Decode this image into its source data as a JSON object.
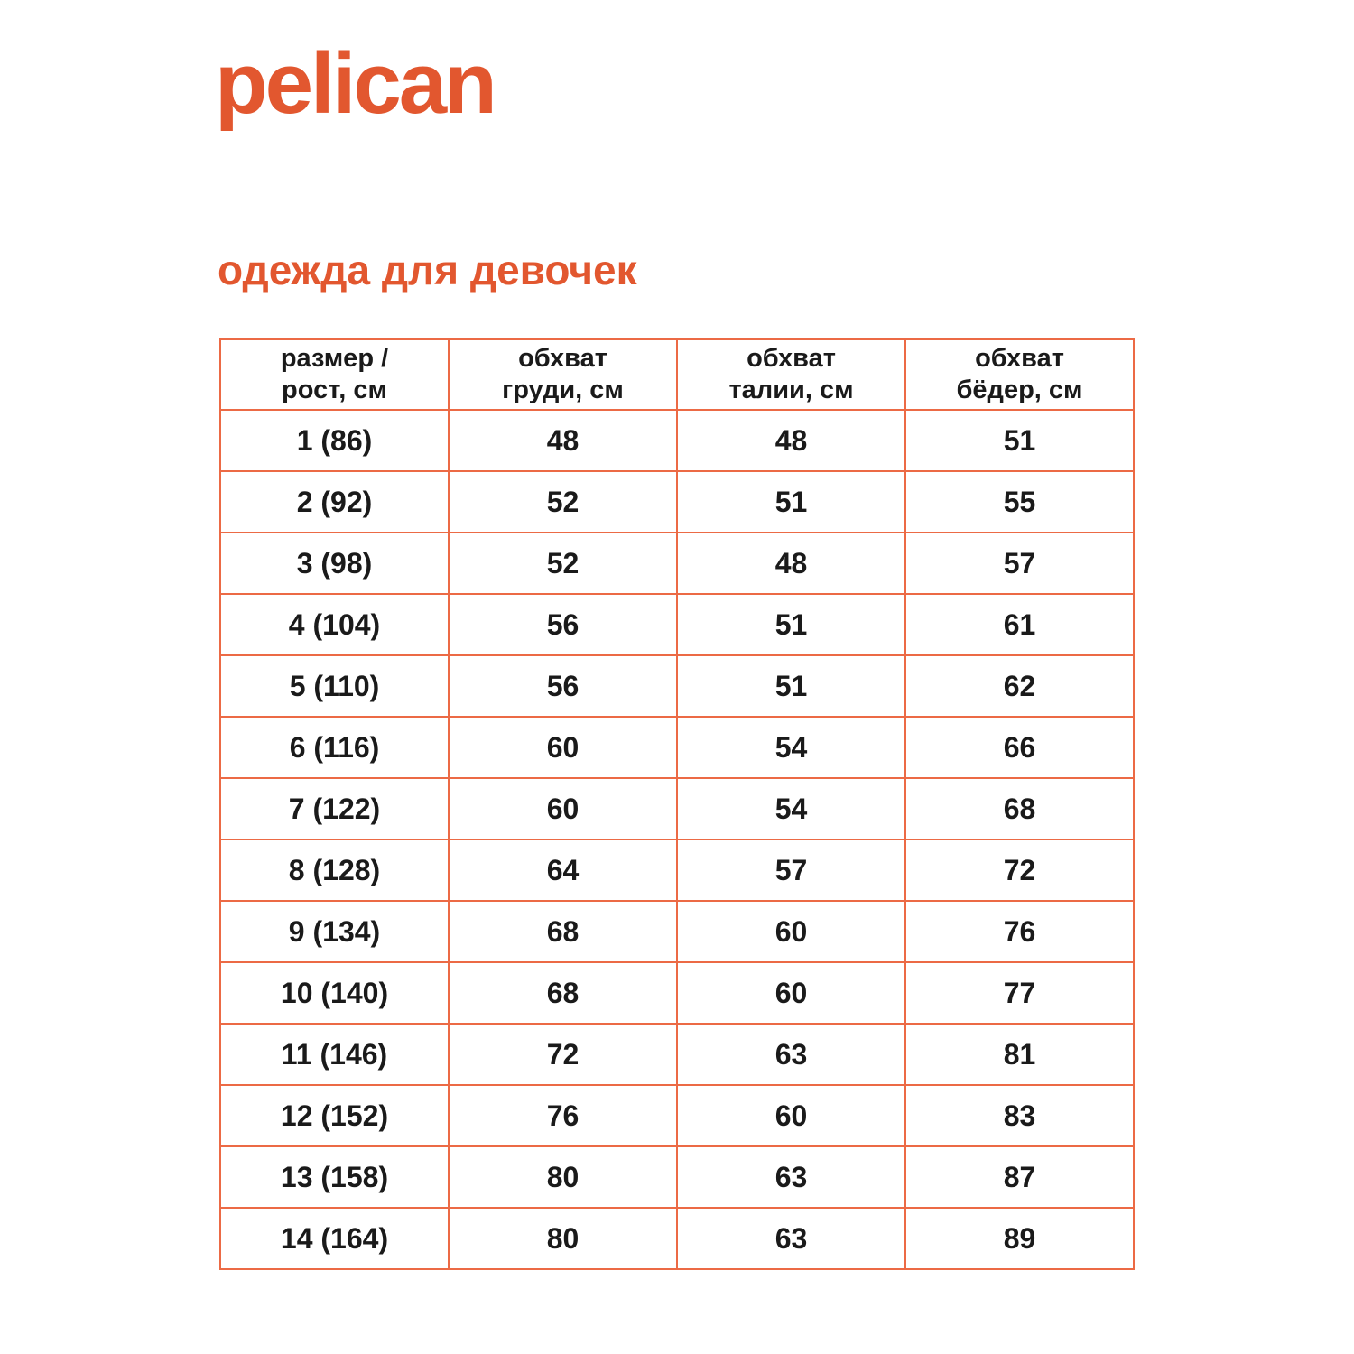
{
  "colors": {
    "brand_orange": "#e2572f",
    "table_border_orange": "#ec6a45",
    "text_black": "#1a1a1a",
    "background": "#ffffff"
  },
  "logo": {
    "text": "pelican"
  },
  "page_title": "одежда для девочек",
  "table": {
    "headers": [
      "размер /\nрост, см",
      "обхват\nгруди, см",
      "обхват\nталии, см",
      "обхват\nбёдер, см"
    ],
    "rows": [
      [
        "1 (86)",
        "48",
        "48",
        "51"
      ],
      [
        "2 (92)",
        "52",
        "51",
        "55"
      ],
      [
        "3 (98)",
        "52",
        "48",
        "57"
      ],
      [
        "4 (104)",
        "56",
        "51",
        "61"
      ],
      [
        "5 (110)",
        "56",
        "51",
        "62"
      ],
      [
        "6 (116)",
        "60",
        "54",
        "66"
      ],
      [
        "7 (122)",
        "60",
        "54",
        "68"
      ],
      [
        "8 (128)",
        "64",
        "57",
        "72"
      ],
      [
        "9 (134)",
        "68",
        "60",
        "76"
      ],
      [
        "10 (140)",
        "68",
        "60",
        "77"
      ],
      [
        "11 (146)",
        "72",
        "63",
        "81"
      ],
      [
        "12 (152)",
        "76",
        "60",
        "83"
      ],
      [
        "13 (158)",
        "80",
        "63",
        "87"
      ],
      [
        "14 (164)",
        "80",
        "63",
        "89"
      ]
    ]
  }
}
